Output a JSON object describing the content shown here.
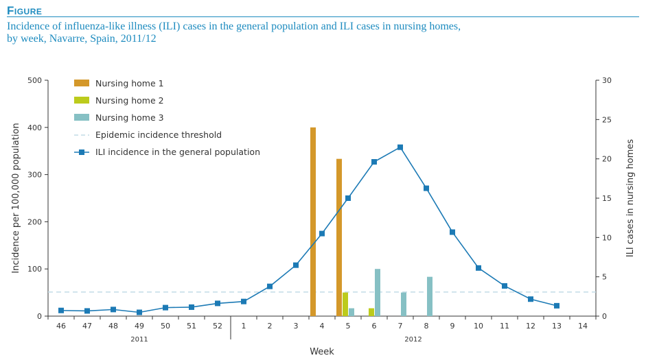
{
  "figure_label": "Figure",
  "title_line1": "Incidence of influenza-like illness (ILI) cases in the general population and ILI cases in nursing homes,",
  "title_line2": "by week, Navarre, Spain, 2011/12",
  "colors": {
    "nursing_home_1": "#d4982a",
    "nursing_home_2": "#bccb1c",
    "nursing_home_3": "#86c0c4",
    "threshold": "#c2dbe6",
    "ili_line": "#1c7ab5",
    "axis": "#333333"
  },
  "chart_data": {
    "type": "bar",
    "title": "Incidence of influenza-like illness (ILI) cases in the general population and ILI cases in nursing homes, by week, Navarre, Spain, 2011/12",
    "categories": [
      "46",
      "47",
      "48",
      "49",
      "50",
      "51",
      "52",
      "1",
      "2",
      "3",
      "4",
      "5",
      "6",
      "7",
      "8",
      "9",
      "10",
      "11",
      "12",
      "13",
      "14"
    ],
    "year_labels": [
      {
        "label": "2011",
        "from": "46",
        "to": "52"
      },
      {
        "label": "2012",
        "from": "1",
        "to": "14"
      }
    ],
    "xlabel": "Week",
    "ylabel_left": "Incidence per 100,000 population",
    "ylabel_right": "ILI cases in nursing homes",
    "ylim_left": [
      0,
      500
    ],
    "yticks_left": [
      0,
      100,
      200,
      300,
      400,
      500
    ],
    "ylim_right": [
      0,
      30
    ],
    "yticks_right": [
      0,
      5,
      10,
      15,
      20,
      25,
      30
    ],
    "series": [
      {
        "name": "Nursing home 1",
        "type": "bar",
        "axis": "right",
        "values": [
          0,
          0,
          0,
          0,
          0,
          0,
          0,
          0,
          0,
          0,
          24,
          20,
          0,
          0,
          0,
          0,
          0,
          0,
          0,
          0,
          0
        ]
      },
      {
        "name": "Nursing home 2",
        "type": "bar",
        "axis": "right",
        "values": [
          0,
          0,
          0,
          0,
          0,
          0,
          0,
          0,
          0,
          0,
          0,
          3,
          1,
          0,
          0,
          0,
          0,
          0,
          0,
          0,
          0
        ]
      },
      {
        "name": "Nursing home 3",
        "type": "bar",
        "axis": "right",
        "values": [
          0,
          0,
          0,
          0,
          0,
          0,
          0,
          0,
          0,
          0,
          0,
          1,
          6,
          3,
          5,
          0,
          0,
          0,
          0,
          0,
          0
        ]
      },
      {
        "name": "Epidemic incidence threshold",
        "type": "line-dashed",
        "axis": "left",
        "value": 51
      },
      {
        "name": "ILI incidence in the general population",
        "type": "line",
        "axis": "left",
        "values": [
          12,
          11,
          14,
          8,
          18,
          19,
          27,
          31,
          63,
          108,
          175,
          250,
          327,
          358,
          271,
          178,
          102,
          64,
          36,
          22,
          null
        ]
      }
    ],
    "legend_placement": "top-left",
    "grid": false
  }
}
